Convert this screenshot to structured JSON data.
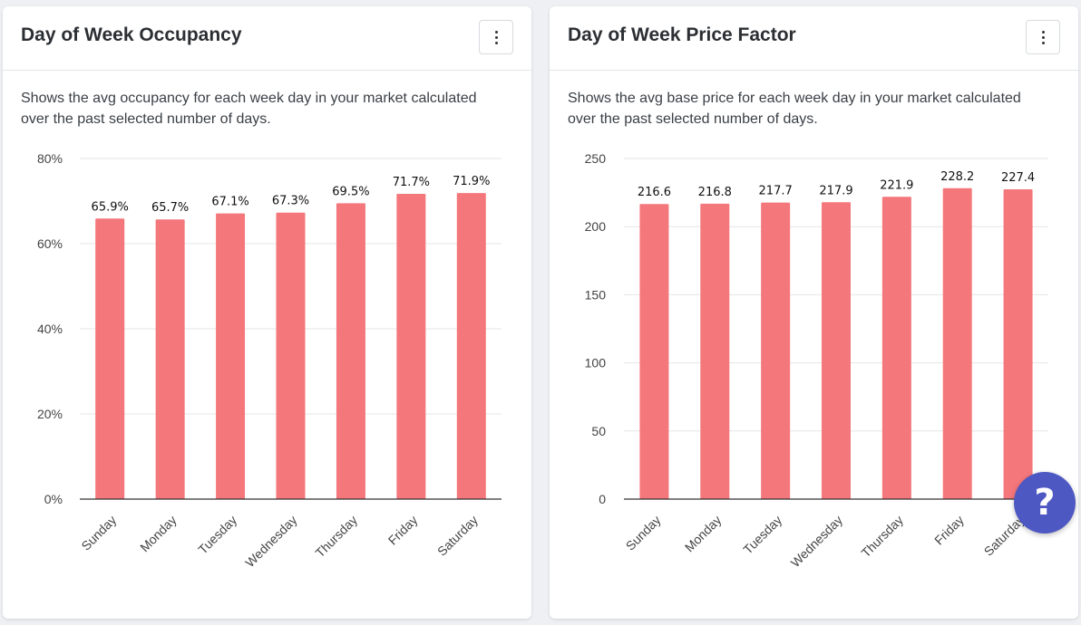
{
  "cards": [
    {
      "title": "Day of Week Occupancy",
      "description": "Shows the avg occupancy for each week day in your market calculated over the past selected number of days."
    },
    {
      "title": "Day of Week Price Factor",
      "description": "Shows the avg base price for each week day in your market calculated over the past selected number of days."
    }
  ],
  "help_button": {
    "label": "?"
  },
  "colors": {
    "bar": "#f4777b",
    "grid": "#e6e6e6",
    "axis": "#333333"
  },
  "chart_data": [
    {
      "type": "bar",
      "title": "Day of Week Occupancy",
      "categories": [
        "Sunday",
        "Monday",
        "Tuesday",
        "Wednesday",
        "Thursday",
        "Friday",
        "Saturday"
      ],
      "values": [
        65.9,
        65.7,
        67.1,
        67.3,
        69.5,
        71.7,
        71.9
      ],
      "value_labels": [
        "65.9%",
        "65.7%",
        "67.1%",
        "67.3%",
        "69.5%",
        "71.7%",
        "71.9%"
      ],
      "yticks": [
        "0%",
        "20%",
        "40%",
        "60%",
        "80%"
      ],
      "ytick_values": [
        0,
        20,
        40,
        60,
        80
      ],
      "ylim": [
        0,
        80
      ],
      "grid": true
    },
    {
      "type": "bar",
      "title": "Day of Week Price Factor",
      "categories": [
        "Sunday",
        "Monday",
        "Tuesday",
        "Wednesday",
        "Thursday",
        "Friday",
        "Saturday"
      ],
      "values": [
        216.6,
        216.8,
        217.7,
        217.9,
        221.9,
        228.2,
        227.4
      ],
      "value_labels": [
        "216.6",
        "216.8",
        "217.7",
        "217.9",
        "221.9",
        "228.2",
        "227.4"
      ],
      "yticks": [
        "0",
        "50",
        "100",
        "150",
        "200",
        "250"
      ],
      "ytick_values": [
        0,
        50,
        100,
        150,
        200,
        250
      ],
      "ylim": [
        0,
        250
      ],
      "grid": true
    }
  ]
}
